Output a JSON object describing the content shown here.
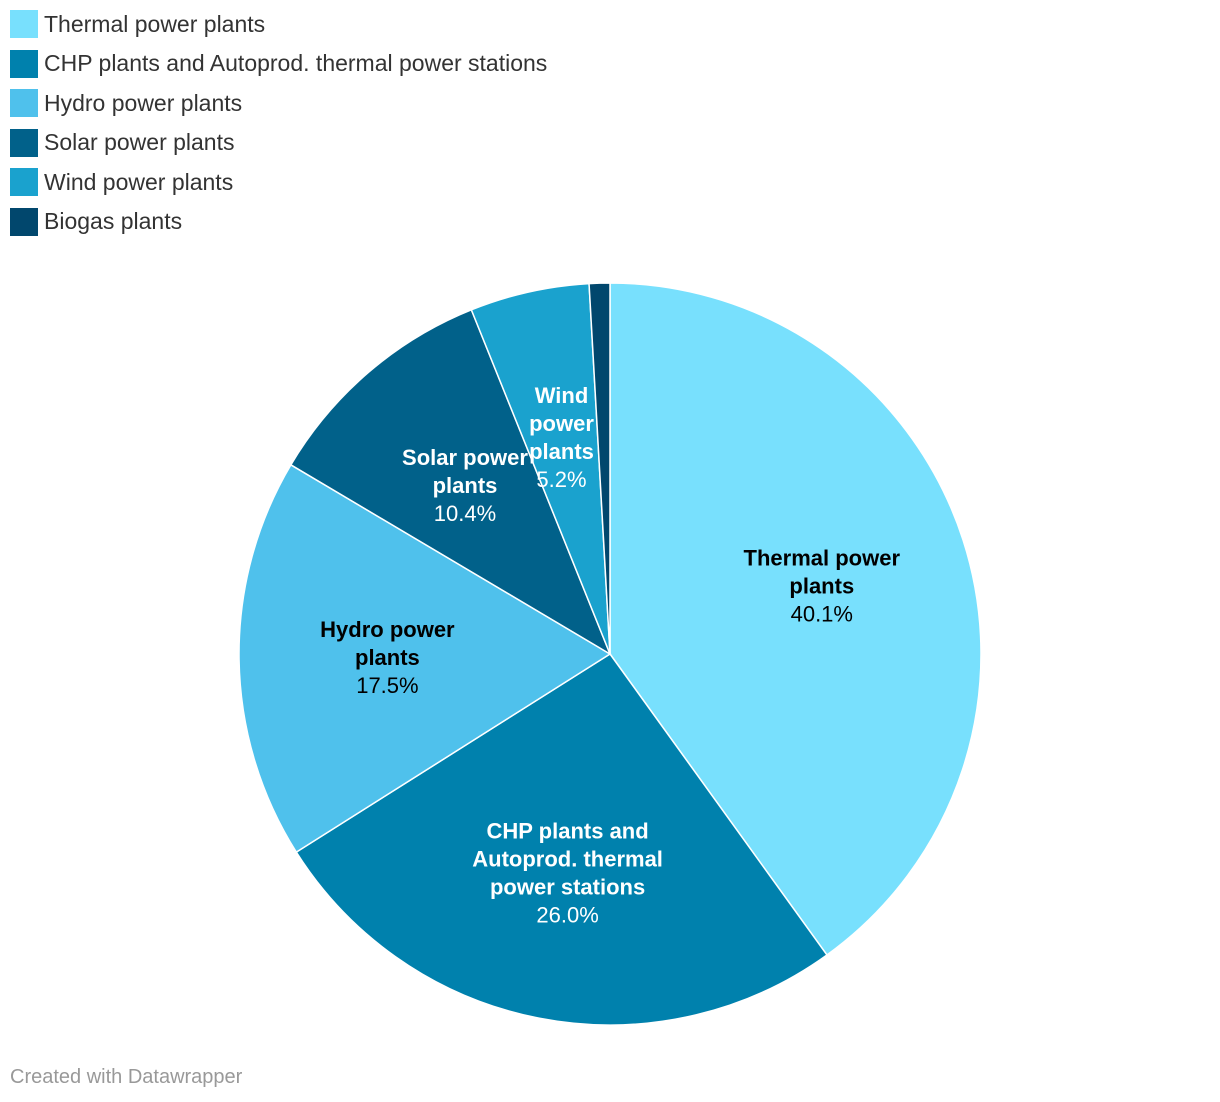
{
  "chart_data": {
    "type": "pie",
    "slices": [
      {
        "name": "Thermal power plants",
        "label_lines": [
          "Thermal power",
          "plants"
        ],
        "value": 40.1,
        "value_label": "40.1%",
        "color": "#78e0fd",
        "label_color": "#000000"
      },
      {
        "name": "CHP plants and Autoprod. thermal power stations",
        "label_lines": [
          "CHP plants and",
          "Autoprod. thermal",
          "power stations"
        ],
        "value": 26.0,
        "value_label": "26.0%",
        "color": "#0081ad",
        "label_color": "#ffffff"
      },
      {
        "name": "Hydro power plants",
        "label_lines": [
          "Hydro power",
          "plants"
        ],
        "value": 17.5,
        "value_label": "17.5%",
        "color": "#4fc1ec",
        "label_color": "#000000"
      },
      {
        "name": "Solar power plants",
        "label_lines": [
          "Solar power",
          "plants"
        ],
        "value": 10.4,
        "value_label": "10.4%",
        "color": "#01618a",
        "label_color": "#ffffff"
      },
      {
        "name": "Wind power plants",
        "label_lines": [
          "Wind",
          "power",
          "plants"
        ],
        "value": 5.2,
        "value_label": "5.2%",
        "color": "#1aa2ce",
        "label_color": "#ffffff"
      },
      {
        "name": "Biogas plants",
        "label_lines": [],
        "value": 0.9,
        "value_label": "",
        "color": "#01476d",
        "label_color": "#ffffff"
      }
    ],
    "legend_position": "top-left"
  },
  "footer": {
    "credit": "Created with Datawrapper"
  }
}
